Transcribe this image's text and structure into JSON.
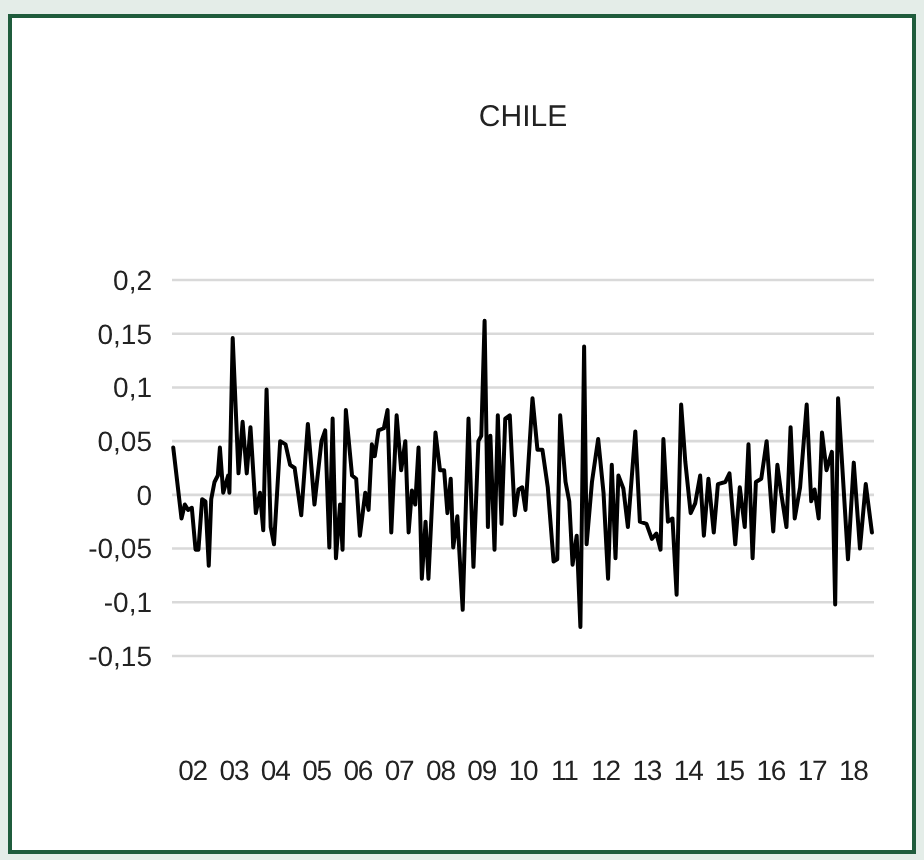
{
  "chart_data": {
    "type": "line",
    "title": "CHILE",
    "xlim": [
      1.5,
      18.5
    ],
    "xticks": [
      {
        "value": 2,
        "label": "02"
      },
      {
        "value": 3,
        "label": "03"
      },
      {
        "value": 4,
        "label": "04"
      },
      {
        "value": 5,
        "label": "05"
      },
      {
        "value": 6,
        "label": "06"
      },
      {
        "value": 7,
        "label": "07"
      },
      {
        "value": 8,
        "label": "08"
      },
      {
        "value": 9,
        "label": "09"
      },
      10,
      11,
      12,
      13,
      14,
      15,
      16,
      17,
      18
    ],
    "ylim": [
      -0.15,
      0.2
    ],
    "yticks": [
      {
        "value": 0.2,
        "label": "0,2"
      },
      {
        "value": 0.15,
        "label": "0,15"
      },
      {
        "value": 0.1,
        "label": "0,1"
      },
      {
        "value": 0.05,
        "label": "0,05"
      },
      {
        "value": 0,
        "label": "0"
      },
      {
        "value": -0.05,
        "label": "-0,05"
      },
      {
        "value": -0.1,
        "label": "-0,1"
      },
      {
        "value": -0.15,
        "label": "-0,15"
      }
    ],
    "grid": "y",
    "marker": "none",
    "line_style": "solid",
    "series": [
      {
        "color": "#000000",
        "x": [
          1.53,
          1.73,
          1.81,
          1.89,
          1.98,
          2.07,
          2.14,
          2.23,
          2.31,
          2.39,
          2.45,
          2.53,
          2.61,
          2.66,
          2.74,
          2.86,
          2.89,
          2.97,
          3.11,
          3.21,
          3.31,
          3.4,
          3.53,
          3.63,
          3.71,
          3.79,
          3.89,
          3.97,
          4.12,
          4.25,
          4.36,
          4.47,
          4.63,
          4.79,
          4.95,
          5.12,
          5.21,
          5.31,
          5.39,
          5.47,
          5.57,
          5.63,
          5.71,
          5.86,
          5.96,
          6.05,
          6.18,
          6.26,
          6.34,
          6.41,
          6.5,
          6.63,
          6.72,
          6.81,
          6.94,
          7.05,
          7.15,
          7.23,
          7.31,
          7.39,
          7.47,
          7.55,
          7.64,
          7.71,
          7.88,
          7.99,
          8.09,
          8.17,
          8.25,
          8.31,
          8.41,
          8.54,
          8.68,
          8.8,
          8.92,
          8.99,
          9.07,
          9.15,
          9.21,
          9.31,
          9.39,
          9.48,
          9.57,
          9.68,
          9.8,
          9.89,
          9.98,
          10.06,
          10.23,
          10.35,
          10.47,
          10.6,
          10.74,
          10.83,
          10.9,
          11.03,
          11.12,
          11.2,
          11.3,
          11.39,
          11.48,
          11.54,
          11.67,
          11.82,
          11.95,
          12.06,
          12.15,
          12.24,
          12.31,
          12.43,
          12.54,
          12.72,
          12.83,
          12.99,
          13.12,
          13.23,
          13.33,
          13.4,
          13.51,
          13.62,
          13.72,
          13.83,
          13.93,
          14.06,
          14.17,
          14.29,
          14.38,
          14.49,
          14.62,
          14.72,
          14.9,
          15.0,
          15.14,
          15.25,
          15.37,
          15.46,
          15.56,
          15.64,
          15.77,
          15.9,
          16.06,
          16.16,
          16.25,
          16.38,
          16.48,
          16.58,
          16.71,
          16.87,
          16.98,
          17.06,
          17.16,
          17.24,
          17.35,
          17.48,
          17.56,
          17.63,
          17.87,
          18.01,
          18.16,
          18.3,
          18.45
        ],
        "values": [
          0.044,
          -0.022,
          -0.009,
          -0.014,
          -0.012,
          -0.051,
          -0.051,
          -0.004,
          -0.006,
          -0.066,
          -0.004,
          0.012,
          0.018,
          0.044,
          0.002,
          0.018,
          0.002,
          0.146,
          0.02,
          0.068,
          0.02,
          0.063,
          -0.017,
          0.002,
          -0.033,
          0.098,
          -0.03,
          -0.046,
          0.05,
          0.047,
          0.028,
          0.025,
          -0.019,
          0.066,
          -0.009,
          0.05,
          0.06,
          -0.049,
          0.071,
          -0.059,
          -0.009,
          -0.051,
          0.079,
          0.018,
          0.015,
          -0.038,
          0.002,
          -0.014,
          0.047,
          0.036,
          0.06,
          0.062,
          0.079,
          -0.035,
          0.074,
          0.023,
          0.05,
          -0.035,
          0.004,
          -0.009,
          0.044,
          -0.078,
          -0.025,
          -0.078,
          0.058,
          0.023,
          0.023,
          -0.017,
          0.015,
          -0.049,
          -0.02,
          -0.107,
          0.071,
          -0.067,
          0.05,
          0.055,
          0.162,
          -0.03,
          0.055,
          -0.051,
          0.074,
          -0.027,
          0.071,
          0.074,
          -0.019,
          0.005,
          0.007,
          -0.014,
          0.09,
          0.042,
          0.042,
          0.007,
          -0.062,
          -0.06,
          0.074,
          0.012,
          -0.006,
          -0.065,
          -0.038,
          -0.123,
          0.138,
          -0.046,
          0.012,
          0.052,
          0.002,
          -0.078,
          0.028,
          -0.059,
          0.018,
          0.006,
          -0.03,
          0.059,
          -0.025,
          -0.027,
          -0.041,
          -0.036,
          -0.051,
          0.052,
          -0.025,
          -0.022,
          -0.093,
          0.084,
          0.031,
          -0.017,
          -0.008,
          0.018,
          -0.038,
          0.015,
          -0.035,
          0.01,
          0.012,
          0.02,
          -0.046,
          0.007,
          -0.03,
          0.047,
          -0.059,
          0.012,
          0.015,
          0.05,
          -0.034,
          0.028,
          0.002,
          -0.03,
          0.063,
          -0.022,
          0.007,
          0.084,
          -0.006,
          0.005,
          -0.022,
          0.058,
          0.023,
          0.04,
          -0.102,
          0.09,
          -0.06,
          0.03,
          -0.05,
          0.01,
          -0.035
        ]
      }
    ]
  }
}
